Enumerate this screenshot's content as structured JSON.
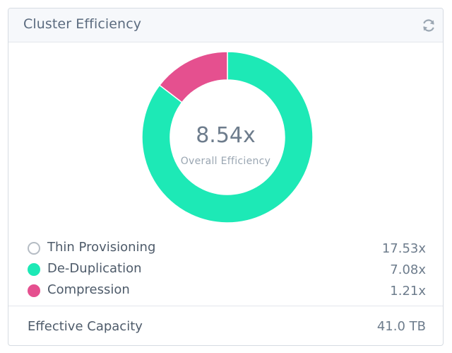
{
  "panel": {
    "title": "Cluster Efficiency",
    "refresh_icon": "refresh-icon"
  },
  "donut": {
    "center_value": "8.54x",
    "center_label": "Overall Efficiency",
    "segments": [
      {
        "name": "De-Duplication",
        "value": 7.08,
        "color": "#1de9b6"
      },
      {
        "name": "Compression",
        "value": 1.21,
        "color": "#e5508f"
      }
    ]
  },
  "legend": [
    {
      "label": "Thin Provisioning",
      "value": "17.53x",
      "color": "#ffffff",
      "outline": "#b5bcc4"
    },
    {
      "label": "De-Duplication",
      "value": "7.08x",
      "color": "#1de9b6",
      "outline": "#1de9b6"
    },
    {
      "label": "Compression",
      "value": "1.21x",
      "color": "#e5508f",
      "outline": "#e5508f"
    }
  ],
  "footer": {
    "label": "Effective Capacity",
    "value": "41.0 TB"
  }
}
